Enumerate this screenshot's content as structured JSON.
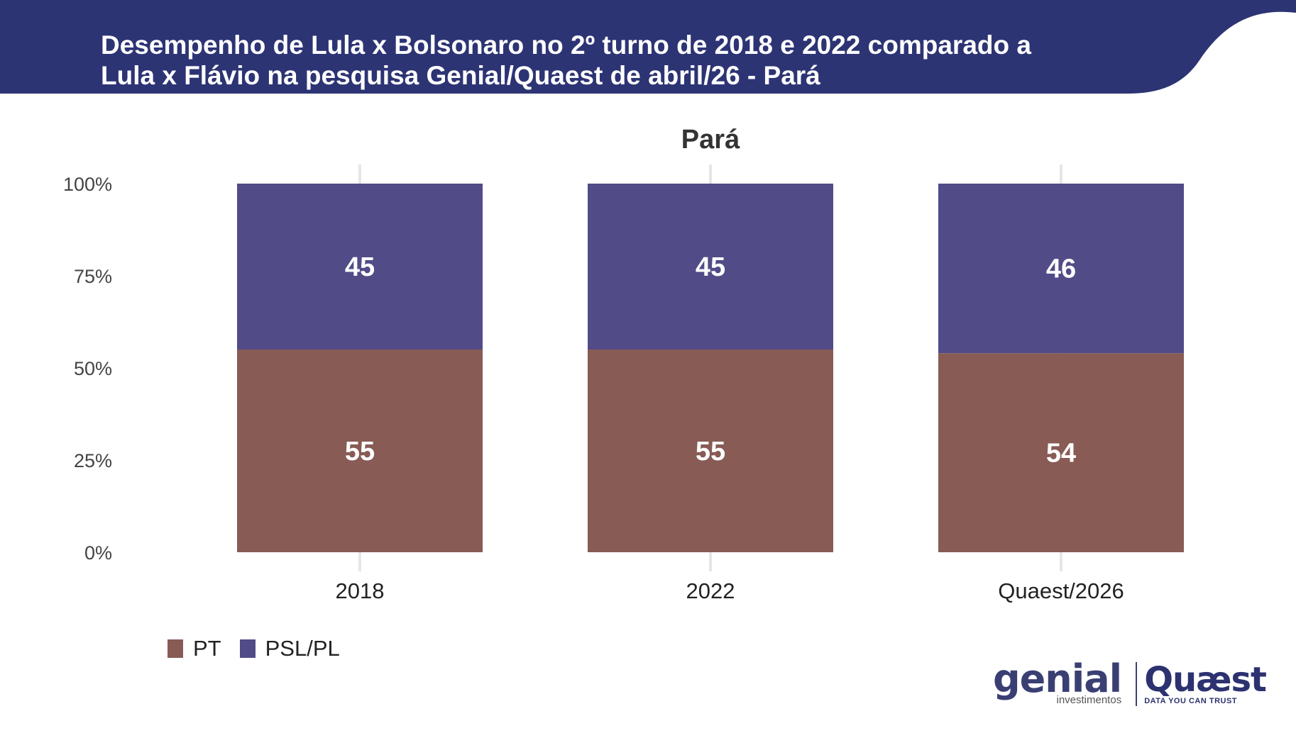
{
  "header": {
    "title_line1": "Desempenho de Lula x Bolsonaro no 2º turno de 2018 e 2022 comparado a",
    "title_line2": "Lula x Flávio na pesquisa Genial/Quaest de abril/26 - Pará",
    "band_color": "#2d3474"
  },
  "chart_data": {
    "type": "bar",
    "stacked": true,
    "title": "Pará",
    "categories": [
      "2018",
      "2022",
      "Quaest/2026"
    ],
    "series": [
      {
        "name": "PT",
        "values": [
          55,
          55,
          54
        ],
        "color": "#885b55"
      },
      {
        "name": "PSL/PL",
        "values": [
          45,
          45,
          46
        ],
        "color": "#514b87"
      }
    ],
    "ylim": [
      0,
      100
    ],
    "yticks": [
      "0%",
      "25%",
      "50%",
      "75%",
      "100%"
    ],
    "ytick_values": [
      0,
      25,
      50,
      75,
      100
    ],
    "grid": "vertical",
    "legend": "bottom-left"
  },
  "logos": {
    "genial_word": "genial",
    "genial_sub": "investimentos",
    "quaest_word": "Quæst",
    "quaest_sub": "DATA YOU CAN TRUST"
  }
}
